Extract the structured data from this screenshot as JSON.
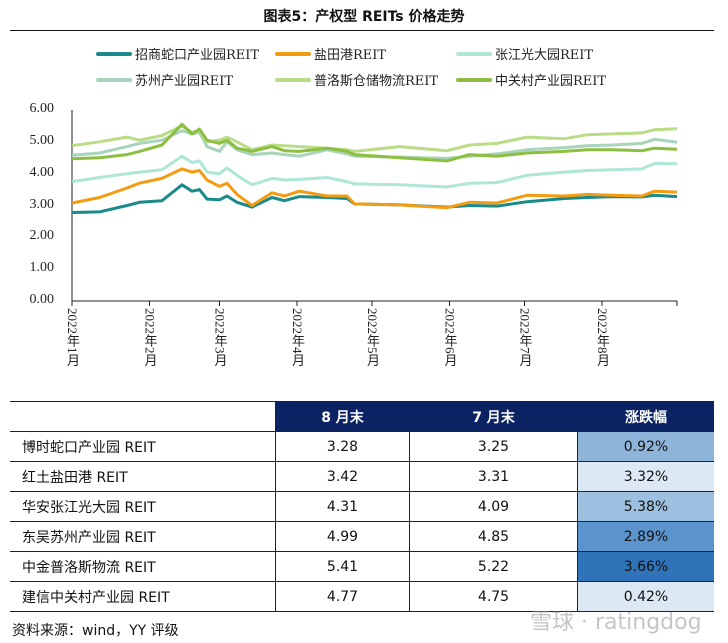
{
  "title": "图表5：产权型 REITs 价格走势",
  "chart_data": {
    "type": "line",
    "title": "图表5：产权型 REITs 价格走势",
    "xlabel": "",
    "ylabel": "",
    "ylim": [
      0,
      6
    ],
    "yticks": [
      "0.00",
      "1.00",
      "2.00",
      "3.00",
      "4.00",
      "5.00",
      "6.00"
    ],
    "xticks": [
      "2022年1月",
      "2022年2月",
      "2022年3月",
      "2022年4月",
      "2022年5月",
      "2022年6月",
      "2022年7月",
      "2022年8月"
    ],
    "xrange": [
      "2022-01-01",
      "2022-08-31"
    ],
    "grid": false,
    "legend_position": "top",
    "x": [
      "2022-01-01",
      "2022-01-12",
      "2022-01-23",
      "2022-01-28",
      "2022-02-06",
      "2022-02-14",
      "2022-02-18",
      "2022-02-21",
      "2022-02-24",
      "2022-03-01",
      "2022-03-04",
      "2022-03-08",
      "2022-03-14",
      "2022-03-22",
      "2022-03-27",
      "2022-04-02",
      "2022-04-13",
      "2022-04-21",
      "2022-04-24",
      "2022-05-12",
      "2022-05-31",
      "2022-06-09",
      "2022-06-20",
      "2022-07-02",
      "2022-07-17",
      "2022-07-26",
      "2022-08-05",
      "2022-08-17",
      "2022-08-22",
      "2022-08-31"
    ],
    "series": [
      {
        "name": "招商蛇口产业园REIT",
        "color": "#1a8a8a",
        "values": [
          2.78,
          2.8,
          3.0,
          3.1,
          3.15,
          3.65,
          3.45,
          3.5,
          3.2,
          3.18,
          3.3,
          3.1,
          2.95,
          3.25,
          3.15,
          3.28,
          3.25,
          3.22,
          3.05,
          3.02,
          2.95,
          3.0,
          2.98,
          3.12,
          3.22,
          3.25,
          3.28,
          3.27,
          3.32,
          3.28
        ]
      },
      {
        "name": "盐田港REIT",
        "color": "#f39c12",
        "values": [
          3.08,
          3.25,
          3.55,
          3.7,
          3.85,
          4.15,
          4.05,
          4.1,
          3.8,
          3.6,
          3.7,
          3.35,
          3.0,
          3.4,
          3.3,
          3.45,
          3.3,
          3.3,
          3.05,
          3.02,
          2.93,
          3.1,
          3.08,
          3.32,
          3.3,
          3.35,
          3.32,
          3.3,
          3.45,
          3.42
        ]
      },
      {
        "name": "张江光大园REIT",
        "color": "#aee6d8",
        "values": [
          3.75,
          3.88,
          4.0,
          4.05,
          4.12,
          4.55,
          4.35,
          4.4,
          4.05,
          4.0,
          4.18,
          3.95,
          3.65,
          3.85,
          3.8,
          3.82,
          3.88,
          3.75,
          3.68,
          3.65,
          3.58,
          3.7,
          3.72,
          3.95,
          4.05,
          4.1,
          4.12,
          4.15,
          4.32,
          4.31
        ]
      },
      {
        "name": "苏州产业园REIT",
        "color": "#a9d4bc",
        "values": [
          4.58,
          4.65,
          4.85,
          4.95,
          5.05,
          5.35,
          5.25,
          5.3,
          4.85,
          4.7,
          5.0,
          4.75,
          4.6,
          4.65,
          4.6,
          4.55,
          4.75,
          4.62,
          4.55,
          4.52,
          4.48,
          4.55,
          4.62,
          4.75,
          4.82,
          4.88,
          4.9,
          4.95,
          5.08,
          4.99
        ]
      },
      {
        "name": "普洛斯仓储物流REIT",
        "color": "#b9dc86",
        "values": [
          4.88,
          5.0,
          5.15,
          5.05,
          5.2,
          5.5,
          5.3,
          5.35,
          5.0,
          5.05,
          5.15,
          5.0,
          4.75,
          4.9,
          4.88,
          4.85,
          4.8,
          4.75,
          4.7,
          4.85,
          4.72,
          4.9,
          4.95,
          5.15,
          5.1,
          5.22,
          5.25,
          5.28,
          5.38,
          5.41
        ]
      },
      {
        "name": "中关村产业园REIT",
        "color": "#8cbf3f",
        "values": [
          4.47,
          4.5,
          4.6,
          4.7,
          4.9,
          5.55,
          5.25,
          5.4,
          5.05,
          4.95,
          5.05,
          4.8,
          4.7,
          4.85,
          4.72,
          4.7,
          4.8,
          4.7,
          4.6,
          4.5,
          4.4,
          4.6,
          4.55,
          4.65,
          4.7,
          4.75,
          4.75,
          4.72,
          4.8,
          4.77
        ]
      }
    ]
  },
  "table": {
    "headers": [
      "",
      "8 月末",
      "7 月末",
      "涨跌幅"
    ],
    "header_bg": "#0b2363",
    "rows": [
      {
        "name": "博时蛇口产业园 REIT",
        "aug": "3.28",
        "jul": "3.25",
        "change": "0.92%",
        "change_bg": "#8eb4da"
      },
      {
        "name": "红土盐田港 REIT",
        "aug": "3.42",
        "jul": "3.31",
        "change": "3.32%",
        "change_bg": "#dce9f5"
      },
      {
        "name": "华安张江光大园 REIT",
        "aug": "4.31",
        "jul": "4.09",
        "change": "5.38%",
        "change_bg": "#9dbfe0"
      },
      {
        "name": "东吴苏州产业园 REIT",
        "aug": "4.99",
        "jul": "4.85",
        "change": "2.89%",
        "change_bg": "#5b93cc"
      },
      {
        "name": "中金普洛斯物流 REIT",
        "aug": "5.41",
        "jul": "5.22",
        "change": "3.66%",
        "change_bg": "#2f73b8"
      },
      {
        "name": "建信中关村产业园 REIT",
        "aug": "4.77",
        "jul": "4.75",
        "change": "0.42%",
        "change_bg": "#dce9f5"
      }
    ]
  },
  "source": "资料来源：wind，YY 评级",
  "watermark": "雪球 · ratingdog"
}
